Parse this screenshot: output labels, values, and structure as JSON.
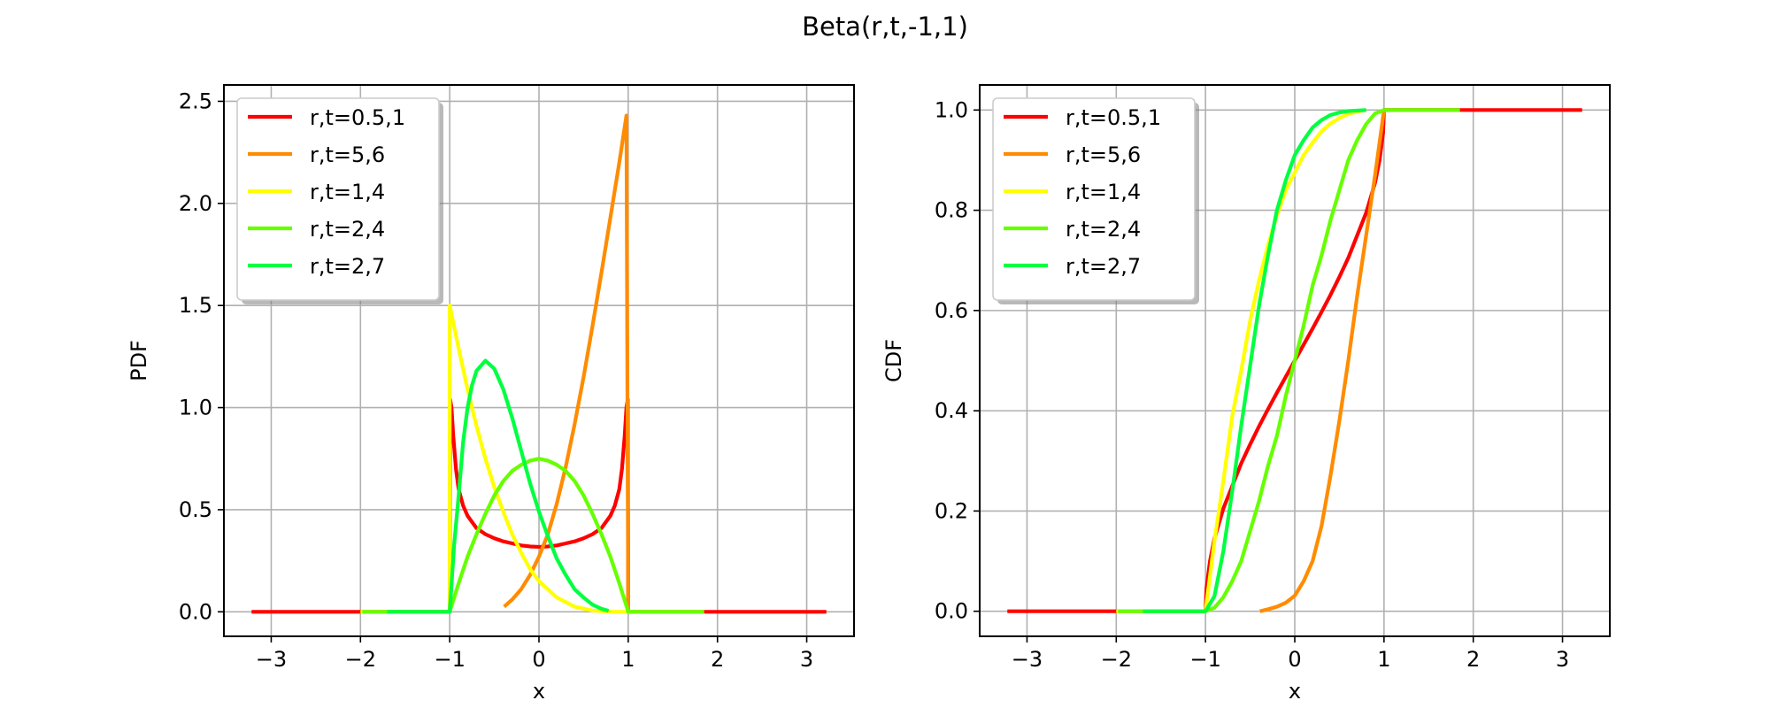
{
  "figure": {
    "title": "Beta(r,t,-1,1)"
  },
  "chart_data": [
    {
      "type": "line",
      "xlabel": "x",
      "ylabel": "PDF",
      "xlim": [
        -3.53,
        3.53
      ],
      "ylim": [
        -0.12,
        2.58
      ],
      "xticks": [
        -3,
        -2,
        -1,
        0,
        1,
        2,
        3
      ],
      "yticks": [
        0.0,
        0.5,
        1.0,
        1.5,
        2.0,
        2.5
      ],
      "grid": true,
      "legend_position": "top-left",
      "series": [
        {
          "name": "r,t=0.5,1",
          "color": "#ff0000",
          "points": [
            [
              -3.22,
              0
            ],
            [
              -1.0,
              0
            ],
            [
              -0.995,
              1.04
            ],
            [
              -0.98,
              1.0
            ],
            [
              -0.96,
              0.86
            ],
            [
              -0.93,
              0.7
            ],
            [
              -0.9,
              0.6
            ],
            [
              -0.85,
              0.52
            ],
            [
              -0.8,
              0.47
            ],
            [
              -0.7,
              0.41
            ],
            [
              -0.6,
              0.38
            ],
            [
              -0.5,
              0.36
            ],
            [
              -0.4,
              0.345
            ],
            [
              -0.3,
              0.335
            ],
            [
              -0.2,
              0.325
            ],
            [
              -0.1,
              0.32
            ],
            [
              0.0,
              0.318
            ],
            [
              0.1,
              0.32
            ],
            [
              0.2,
              0.325
            ],
            [
              0.3,
              0.335
            ],
            [
              0.4,
              0.345
            ],
            [
              0.5,
              0.36
            ],
            [
              0.6,
              0.38
            ],
            [
              0.7,
              0.41
            ],
            [
              0.8,
              0.47
            ],
            [
              0.85,
              0.52
            ],
            [
              0.9,
              0.6
            ],
            [
              0.93,
              0.7
            ],
            [
              0.96,
              0.86
            ],
            [
              0.98,
              1.0
            ],
            [
              0.995,
              1.04
            ],
            [
              1.0,
              0
            ],
            [
              3.22,
              0
            ]
          ]
        },
        {
          "name": "r,t=5,6",
          "color": "#ff8c00",
          "points": [
            [
              -0.39,
              0.025
            ],
            [
              -0.3,
              0.06
            ],
            [
              -0.2,
              0.11
            ],
            [
              -0.1,
              0.18
            ],
            [
              0.0,
              0.27
            ],
            [
              0.1,
              0.38
            ],
            [
              0.2,
              0.53
            ],
            [
              0.3,
              0.71
            ],
            [
              0.4,
              0.92
            ],
            [
              0.5,
              1.15
            ],
            [
              0.6,
              1.4
            ],
            [
              0.7,
              1.66
            ],
            [
              0.8,
              1.93
            ],
            [
              0.9,
              2.2
            ],
            [
              0.98,
              2.43
            ],
            [
              1.0,
              0
            ],
            [
              1.85,
              0
            ]
          ]
        },
        {
          "name": "r,t=1,4",
          "color": "#ffff00",
          "points": [
            [
              -2.0,
              0
            ],
            [
              -1.0,
              0
            ],
            [
              -1.0,
              1.5
            ],
            [
              -0.9,
              1.29
            ],
            [
              -0.8,
              1.09
            ],
            [
              -0.7,
              0.91
            ],
            [
              -0.6,
              0.75
            ],
            [
              -0.5,
              0.61
            ],
            [
              -0.4,
              0.49
            ],
            [
              -0.3,
              0.38
            ],
            [
              -0.2,
              0.29
            ],
            [
              -0.1,
              0.21
            ],
            [
              0.0,
              0.15
            ],
            [
              0.2,
              0.07
            ],
            [
              0.4,
              0.025
            ],
            [
              0.6,
              0.006
            ],
            [
              0.8,
              0.0005
            ],
            [
              1.0,
              0
            ],
            [
              1.85,
              0
            ]
          ]
        },
        {
          "name": "r,t=2,4",
          "color": "#66ff00",
          "points": [
            [
              -1.98,
              0
            ],
            [
              -1.0,
              0
            ],
            [
              -0.9,
              0.14
            ],
            [
              -0.8,
              0.27
            ],
            [
              -0.7,
              0.38
            ],
            [
              -0.6,
              0.48
            ],
            [
              -0.5,
              0.57
            ],
            [
              -0.4,
              0.64
            ],
            [
              -0.3,
              0.69
            ],
            [
              -0.2,
              0.72
            ],
            [
              -0.1,
              0.74
            ],
            [
              0.0,
              0.75
            ],
            [
              0.1,
              0.74
            ],
            [
              0.2,
              0.72
            ],
            [
              0.3,
              0.69
            ],
            [
              0.4,
              0.64
            ],
            [
              0.5,
              0.57
            ],
            [
              0.6,
              0.48
            ],
            [
              0.7,
              0.38
            ],
            [
              0.8,
              0.27
            ],
            [
              0.9,
              0.14
            ],
            [
              1.0,
              0
            ],
            [
              1.85,
              0
            ]
          ]
        },
        {
          "name": "r,t=2,7",
          "color": "#00ff40",
          "points": [
            [
              -1.7,
              0
            ],
            [
              -1.0,
              0
            ],
            [
              -0.95,
              0.33
            ],
            [
              -0.9,
              0.57
            ],
            [
              -0.85,
              0.83
            ],
            [
              -0.8,
              1.0
            ],
            [
              -0.75,
              1.11
            ],
            [
              -0.7,
              1.18
            ],
            [
              -0.6,
              1.23
            ],
            [
              -0.5,
              1.19
            ],
            [
              -0.4,
              1.09
            ],
            [
              -0.3,
              0.95
            ],
            [
              -0.2,
              0.79
            ],
            [
              -0.1,
              0.63
            ],
            [
              0.0,
              0.49
            ],
            [
              0.1,
              0.37
            ],
            [
              0.2,
              0.26
            ],
            [
              0.3,
              0.18
            ],
            [
              0.4,
              0.11
            ],
            [
              0.5,
              0.07
            ],
            [
              0.6,
              0.035
            ],
            [
              0.7,
              0.015
            ],
            [
              0.78,
              0.005
            ]
          ]
        }
      ]
    },
    {
      "type": "line",
      "xlabel": "x",
      "ylabel": "CDF",
      "xlim": [
        -3.53,
        3.53
      ],
      "ylim": [
        -0.05,
        1.05
      ],
      "xticks": [
        -3,
        -2,
        -1,
        0,
        1,
        2,
        3
      ],
      "yticks": [
        0.0,
        0.2,
        0.4,
        0.6,
        0.8,
        1.0
      ],
      "grid": true,
      "legend_position": "top-left",
      "series": [
        {
          "name": "r,t=0.5,1",
          "color": "#ff0000",
          "points": [
            [
              -3.22,
              0
            ],
            [
              -1.0,
              0
            ],
            [
              -0.99,
              0.045
            ],
            [
              -0.95,
              0.1
            ],
            [
              -0.9,
              0.145
            ],
            [
              -0.8,
              0.205
            ],
            [
              -0.7,
              0.25
            ],
            [
              -0.6,
              0.295
            ],
            [
              -0.5,
              0.333
            ],
            [
              -0.4,
              0.369
            ],
            [
              -0.3,
              0.403
            ],
            [
              -0.2,
              0.436
            ],
            [
              -0.1,
              0.468
            ],
            [
              0.0,
              0.5
            ],
            [
              0.1,
              0.532
            ],
            [
              0.2,
              0.564
            ],
            [
              0.3,
              0.597
            ],
            [
              0.4,
              0.631
            ],
            [
              0.5,
              0.667
            ],
            [
              0.6,
              0.705
            ],
            [
              0.7,
              0.75
            ],
            [
              0.8,
              0.795
            ],
            [
              0.9,
              0.855
            ],
            [
              0.95,
              0.9
            ],
            [
              0.99,
              0.955
            ],
            [
              1.0,
              1.0
            ],
            [
              3.22,
              1.0
            ]
          ]
        },
        {
          "name": "r,t=5,6",
          "color": "#ff8c00",
          "points": [
            [
              -0.39,
              0.0
            ],
            [
              -0.3,
              0.004
            ],
            [
              -0.2,
              0.009
            ],
            [
              -0.1,
              0.017
            ],
            [
              0.0,
              0.031
            ],
            [
              0.1,
              0.06
            ],
            [
              0.2,
              0.1
            ],
            [
              0.3,
              0.17
            ],
            [
              0.4,
              0.27
            ],
            [
              0.5,
              0.38
            ],
            [
              0.6,
              0.5
            ],
            [
              0.7,
              0.63
            ],
            [
              0.8,
              0.75
            ],
            [
              0.9,
              0.87
            ],
            [
              1.0,
              1.0
            ],
            [
              1.85,
              1.0
            ]
          ]
        },
        {
          "name": "r,t=1,4",
          "color": "#ffff00",
          "points": [
            [
              -2.0,
              0
            ],
            [
              -1.0,
              0
            ],
            [
              -0.9,
              0.14
            ],
            [
              -0.8,
              0.26
            ],
            [
              -0.7,
              0.39
            ],
            [
              -0.6,
              0.48
            ],
            [
              -0.5,
              0.58
            ],
            [
              -0.4,
              0.66
            ],
            [
              -0.3,
              0.73
            ],
            [
              -0.2,
              0.79
            ],
            [
              -0.1,
              0.84
            ],
            [
              0.0,
              0.875
            ],
            [
              0.1,
              0.91
            ],
            [
              0.2,
              0.935
            ],
            [
              0.3,
              0.957
            ],
            [
              0.4,
              0.973
            ],
            [
              0.5,
              0.984
            ],
            [
              0.6,
              0.992
            ],
            [
              0.7,
              0.997
            ],
            [
              0.8,
              1.0
            ]
          ]
        },
        {
          "name": "r,t=2,4",
          "color": "#66ff00",
          "points": [
            [
              -1.98,
              0
            ],
            [
              -1.0,
              0
            ],
            [
              -0.9,
              0.007
            ],
            [
              -0.8,
              0.028
            ],
            [
              -0.7,
              0.06
            ],
            [
              -0.6,
              0.1
            ],
            [
              -0.5,
              0.16
            ],
            [
              -0.4,
              0.22
            ],
            [
              -0.3,
              0.29
            ],
            [
              -0.2,
              0.35
            ],
            [
              -0.1,
              0.43
            ],
            [
              0.0,
              0.5
            ],
            [
              0.1,
              0.57
            ],
            [
              0.2,
              0.65
            ],
            [
              0.3,
              0.71
            ],
            [
              0.4,
              0.78
            ],
            [
              0.5,
              0.84
            ],
            [
              0.6,
              0.9
            ],
            [
              0.7,
              0.94
            ],
            [
              0.8,
              0.972
            ],
            [
              0.9,
              0.993
            ],
            [
              1.0,
              1.0
            ],
            [
              1.85,
              1.0
            ]
          ]
        },
        {
          "name": "r,t=2,7",
          "color": "#00ff40",
          "points": [
            [
              -1.7,
              0
            ],
            [
              -1.0,
              0
            ],
            [
              -0.9,
              0.03
            ],
            [
              -0.8,
              0.12
            ],
            [
              -0.7,
              0.24
            ],
            [
              -0.6,
              0.37
            ],
            [
              -0.5,
              0.49
            ],
            [
              -0.4,
              0.61
            ],
            [
              -0.3,
              0.71
            ],
            [
              -0.2,
              0.8
            ],
            [
              -0.1,
              0.86
            ],
            [
              0.0,
              0.91
            ],
            [
              0.1,
              0.94
            ],
            [
              0.2,
              0.965
            ],
            [
              0.3,
              0.98
            ],
            [
              0.4,
              0.99
            ],
            [
              0.5,
              0.995
            ],
            [
              0.6,
              0.998
            ],
            [
              0.8,
              1.0
            ]
          ]
        }
      ]
    }
  ]
}
